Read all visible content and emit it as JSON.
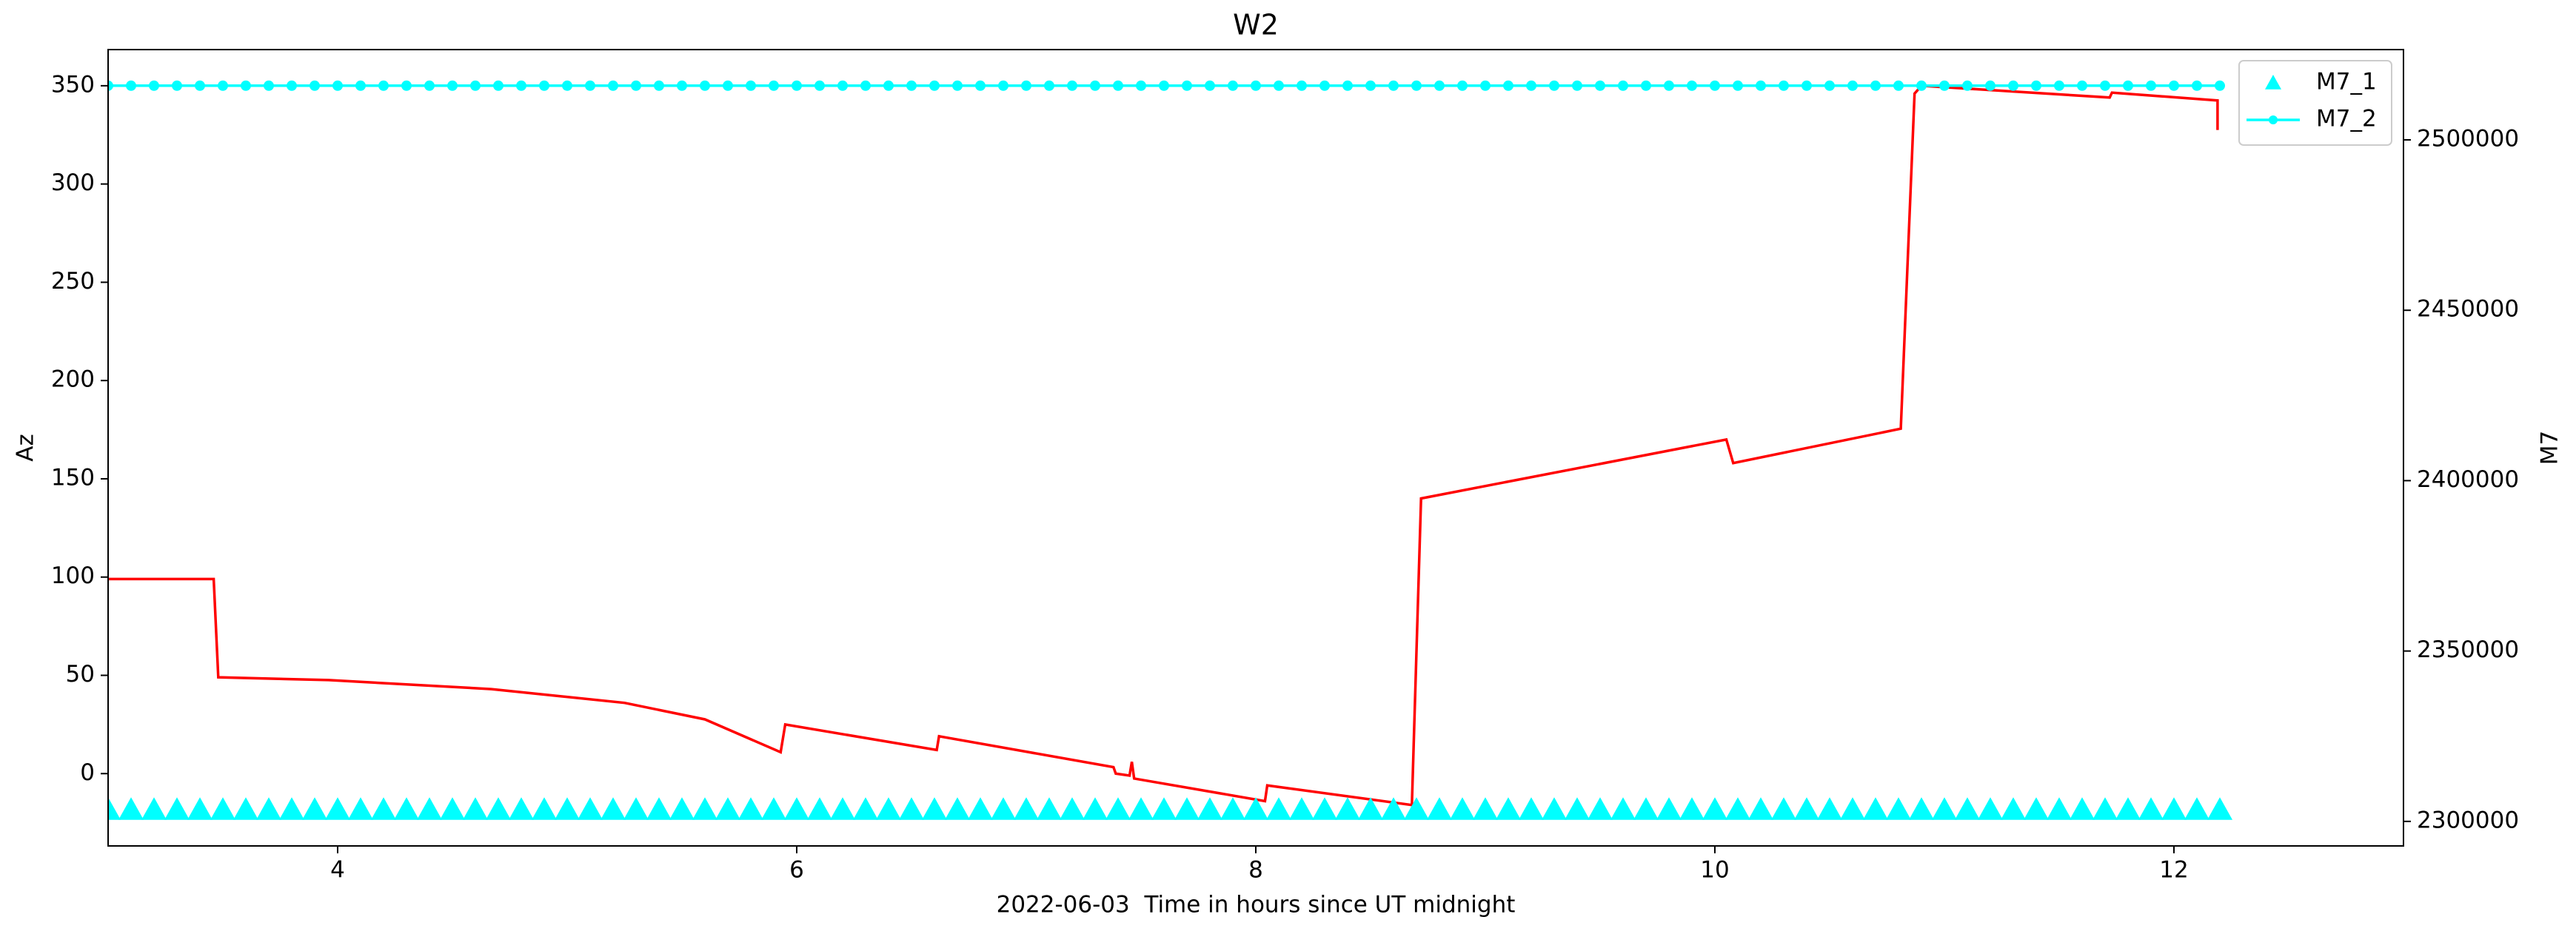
{
  "chart_data": {
    "type": "line",
    "title": "W2",
    "xlabel": "2022-06-03  Time in hours since UT midnight",
    "ylabel": "Az",
    "y2label": "M7",
    "xlim": [
      3.0,
      13.0
    ],
    "xticks": [
      4,
      6,
      8,
      10,
      12
    ],
    "ylim": [
      -36.8,
      368.4
    ],
    "yticks": [
      0,
      50,
      100,
      150,
      200,
      250,
      300,
      350
    ],
    "y2lim": [
      2292800,
      2526500
    ],
    "y2ticks": [
      2300000,
      2350000,
      2400000,
      2450000,
      2500000
    ],
    "legend": "upper right",
    "series": [
      {
        "color": "#ff0000",
        "marker": "none",
        "x": [
          3.0,
          3.46,
          3.48,
          3.96,
          4.67,
          5.25,
          5.6,
          5.93,
          5.95,
          6.61,
          6.62,
          7.38,
          7.39,
          7.45,
          7.46,
          7.47,
          8.04,
          8.05,
          8.68,
          8.72,
          10.05,
          10.08,
          10.81,
          10.87,
          10.9,
          11.72,
          11.73,
          12.19,
          12.19
        ],
        "values": [
          99,
          99,
          49,
          47.6,
          43,
          36,
          27.6,
          10.9,
          25,
          12,
          19,
          3.3,
          0,
          -1,
          6,
          -2.5,
          -14,
          -6,
          -16,
          140,
          170,
          158,
          175.5,
          346,
          350,
          344,
          346.5,
          342.5,
          327.5
        ]
      },
      {
        "name": "M7_1",
        "color": "#00ffff",
        "marker": "triangle",
        "axis": "y2",
        "x": [
          3.0,
          3.1,
          3.2,
          3.3,
          3.4,
          3.5,
          3.6,
          3.7,
          3.8,
          3.9,
          4.0,
          4.1,
          4.2,
          4.3,
          4.4,
          4.5,
          4.6,
          4.7,
          4.8,
          4.9,
          5.0,
          5.1,
          5.2,
          5.3,
          5.4,
          5.5,
          5.6,
          5.7,
          5.8,
          5.9,
          6.0,
          6.1,
          6.2,
          6.3,
          6.4,
          6.5,
          6.6,
          6.7,
          6.8,
          6.9,
          7.0,
          7.1,
          7.2,
          7.3,
          7.4,
          7.5,
          7.6,
          7.7,
          7.8,
          7.9,
          8.0,
          8.1,
          8.2,
          8.3,
          8.4,
          8.5,
          8.6,
          8.7,
          8.8,
          8.9,
          9.0,
          9.1,
          9.2,
          9.3,
          9.4,
          9.5,
          9.6,
          9.7,
          9.8,
          9.9,
          10.0,
          10.1,
          10.2,
          10.3,
          10.4,
          10.5,
          10.6,
          10.7,
          10.8,
          10.9,
          11.0,
          11.1,
          11.2,
          11.3,
          11.4,
          11.5,
          11.6,
          11.7,
          11.8,
          11.9,
          12.0,
          12.1,
          12.2
        ],
        "values": [
          2303400,
          2303400,
          2303400,
          2303400,
          2303400,
          2303400,
          2303400,
          2303400,
          2303400,
          2303400,
          2303400,
          2303400,
          2303400,
          2303400,
          2303400,
          2303400,
          2303400,
          2303400,
          2303400,
          2303400,
          2303400,
          2303400,
          2303400,
          2303400,
          2303400,
          2303400,
          2303400,
          2303400,
          2303400,
          2303400,
          2303400,
          2303400,
          2303400,
          2303400,
          2303400,
          2303400,
          2303400,
          2303400,
          2303400,
          2303400,
          2303400,
          2303400,
          2303400,
          2303400,
          2303400,
          2303400,
          2303400,
          2303400,
          2303400,
          2303400,
          2303400,
          2303400,
          2303400,
          2303400,
          2303400,
          2303400,
          2303400,
          2303400,
          2303400,
          2303400,
          2303400,
          2303400,
          2303400,
          2303400,
          2303400,
          2303400,
          2303400,
          2303400,
          2303400,
          2303400,
          2303400,
          2303400,
          2303400,
          2303400,
          2303400,
          2303400,
          2303400,
          2303400,
          2303400,
          2303400,
          2303400,
          2303400,
          2303400,
          2303400,
          2303400,
          2303400,
          2303400,
          2303400,
          2303400,
          2303400,
          2303400,
          2303400,
          2303400
        ]
      },
      {
        "name": "M7_2",
        "color": "#00ffff",
        "marker": "circle",
        "axis": "y2",
        "x": [
          3.0,
          3.1,
          3.2,
          3.3,
          3.4,
          3.5,
          3.6,
          3.7,
          3.8,
          3.9,
          4.0,
          4.1,
          4.2,
          4.3,
          4.4,
          4.5,
          4.6,
          4.7,
          4.8,
          4.9,
          5.0,
          5.1,
          5.2,
          5.3,
          5.4,
          5.5,
          5.6,
          5.7,
          5.8,
          5.9,
          6.0,
          6.1,
          6.2,
          6.3,
          6.4,
          6.5,
          6.6,
          6.7,
          6.8,
          6.9,
          7.0,
          7.1,
          7.2,
          7.3,
          7.4,
          7.5,
          7.6,
          7.7,
          7.8,
          7.9,
          8.0,
          8.1,
          8.2,
          8.3,
          8.4,
          8.5,
          8.6,
          8.7,
          8.8,
          8.9,
          9.0,
          9.1,
          9.2,
          9.3,
          9.4,
          9.5,
          9.6,
          9.7,
          9.8,
          9.9,
          10.0,
          10.1,
          10.2,
          10.3,
          10.4,
          10.5,
          10.6,
          10.7,
          10.8,
          10.9,
          11.0,
          11.1,
          11.2,
          11.3,
          11.4,
          11.5,
          11.6,
          11.7,
          11.8,
          11.9,
          12.0,
          12.1,
          12.2
        ],
        "values": [
          2515900,
          2515900,
          2515900,
          2515900,
          2515900,
          2515900,
          2515900,
          2515900,
          2515900,
          2515900,
          2515900,
          2515900,
          2515900,
          2515900,
          2515900,
          2515900,
          2515900,
          2515900,
          2515900,
          2515900,
          2515900,
          2515900,
          2515900,
          2515900,
          2515900,
          2515900,
          2515900,
          2515900,
          2515900,
          2515900,
          2515900,
          2515900,
          2515900,
          2515900,
          2515900,
          2515900,
          2515900,
          2515900,
          2515900,
          2515900,
          2515900,
          2515900,
          2515900,
          2515900,
          2515900,
          2515900,
          2515900,
          2515900,
          2515900,
          2515900,
          2515900,
          2515900,
          2515900,
          2515900,
          2515900,
          2515900,
          2515900,
          2515900,
          2515900,
          2515900,
          2515900,
          2515900,
          2515900,
          2515900,
          2515900,
          2515900,
          2515900,
          2515900,
          2515900,
          2515900,
          2515900,
          2515900,
          2515900,
          2515900,
          2515900,
          2515900,
          2515900,
          2515900,
          2515900,
          2515900,
          2515900,
          2515900,
          2515900,
          2515900,
          2515900,
          2515900,
          2515900,
          2515900,
          2515900,
          2515900,
          2515900,
          2515900,
          2515900
        ]
      }
    ]
  }
}
